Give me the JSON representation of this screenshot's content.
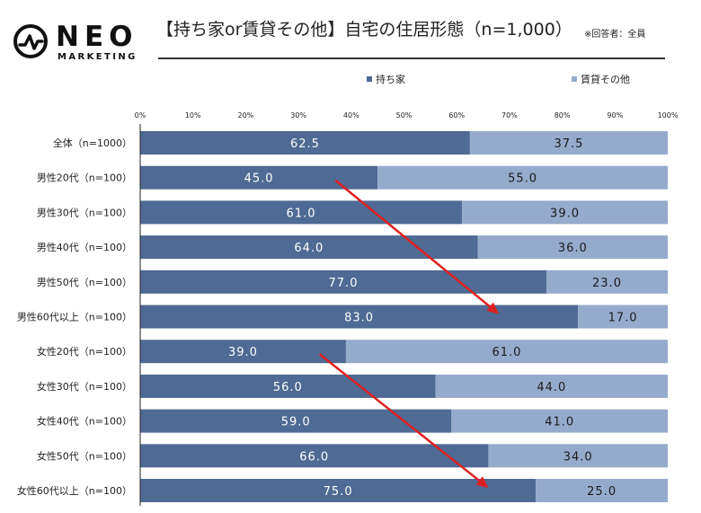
{
  "logo": {
    "name": "NEO",
    "sub": "MARKETING",
    "icon": "pulse-circle-icon"
  },
  "title": "【持ち家or賃貸その他】自宅の住居形態（n=1,000）",
  "respondents": "※回答者：全員",
  "colors": {
    "own": "#4f6a94",
    "rent": "#95abcb",
    "arrow": "#e02020",
    "axis": "#222222"
  },
  "chart_data": {
    "type": "bar",
    "orientation": "horizontal",
    "stacked": true,
    "percent": true,
    "xlim": [
      0,
      100
    ],
    "x_ticks": [
      "0%",
      "10%",
      "20%",
      "30%",
      "40%",
      "50%",
      "60%",
      "70%",
      "80%",
      "90%",
      "100%"
    ],
    "legend_position": "top-right",
    "categories": [
      "全体（n=1000）",
      "男性20代（n=100）",
      "男性30代（n=100）",
      "男性40代（n=100）",
      "男性50代（n=100）",
      "男性60代以上（n=100）",
      "女性20代（n=100）",
      "女性30代（n=100）",
      "女性40代（n=100）",
      "女性50代（n=100）",
      "女性60代以上（n=100）"
    ],
    "series": [
      {
        "name": "持ち家",
        "values": [
          62.5,
          45.0,
          61.0,
          64.0,
          77.0,
          83.0,
          39.0,
          56.0,
          59.0,
          66.0,
          75.0
        ],
        "labels": [
          "62.5",
          "45.0",
          "61.0",
          "64.0",
          "77.0",
          "83.0",
          "39.0",
          "56.0",
          "59.0",
          "66.0",
          "75.0"
        ]
      },
      {
        "name": "賃貸その他",
        "values": [
          37.5,
          55.0,
          39.0,
          36.0,
          23.0,
          17.0,
          61.0,
          44.0,
          41.0,
          34.0,
          25.0
        ],
        "labels": [
          "37.5",
          "55.0",
          "39.0",
          "36.0",
          "23.0",
          "17.0",
          "61.0",
          "44.0",
          "41.0",
          "34.0",
          "25.0"
        ]
      }
    ],
    "annotations": [
      {
        "type": "arrow",
        "from": {
          "category": 1,
          "x": 37
        },
        "to": {
          "category": 5,
          "x": 68
        }
      },
      {
        "type": "arrow",
        "from": {
          "category": 6,
          "x": 34
        },
        "to": {
          "category": 10,
          "x": 66
        }
      }
    ]
  }
}
